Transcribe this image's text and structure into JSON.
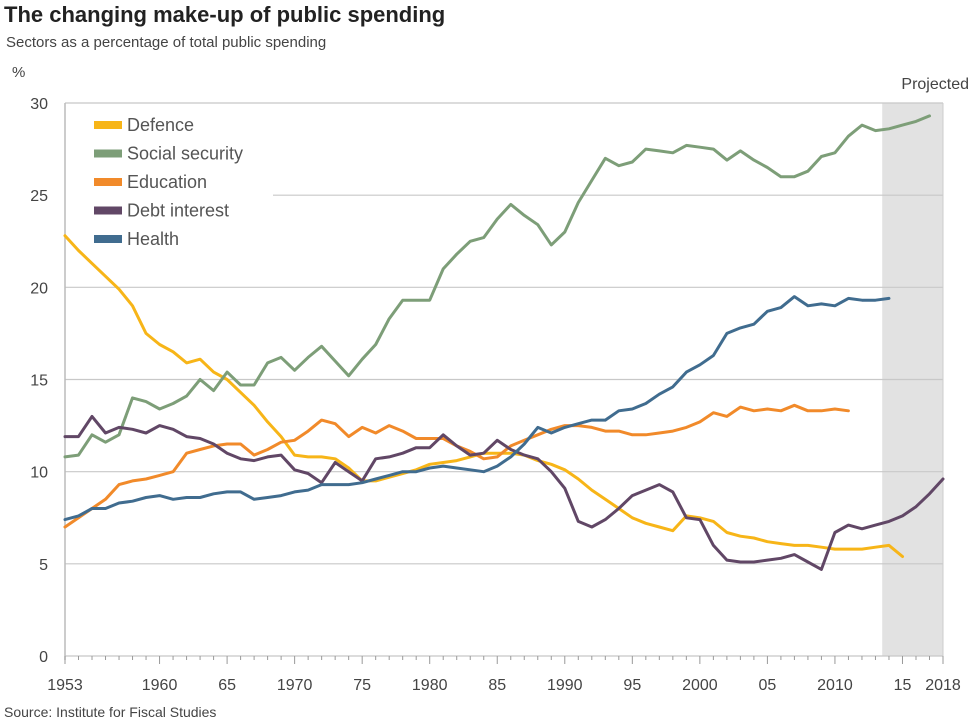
{
  "title": "The changing make-up of public spending",
  "subtitle": "Sectors as a percentage of total public spending",
  "source": "Source: Institute for Fiscal Studies",
  "chart_data": {
    "type": "line",
    "title": "The changing make-up of public spending",
    "ylabel": "%",
    "xlim": [
      1953,
      2018
    ],
    "ylim": [
      0,
      30
    ],
    "yticks": [
      0,
      5,
      10,
      15,
      20,
      25,
      30
    ],
    "xticks": [
      {
        "year": 1953,
        "label": "1953"
      },
      {
        "year": 1960,
        "label": "1960"
      },
      {
        "year": 1965,
        "label": "65"
      },
      {
        "year": 1970,
        "label": "1970"
      },
      {
        "year": 1975,
        "label": "75"
      },
      {
        "year": 1980,
        "label": "1980"
      },
      {
        "year": 1985,
        "label": "85"
      },
      {
        "year": 1990,
        "label": "1990"
      },
      {
        "year": 1995,
        "label": "95"
      },
      {
        "year": 2000,
        "label": "2000"
      },
      {
        "year": 2005,
        "label": "05"
      },
      {
        "year": 2010,
        "label": "2010"
      },
      {
        "year": 2015,
        "label": "15"
      },
      {
        "year": 2018,
        "label": "2018"
      }
    ],
    "grid": true,
    "legend": "top-left",
    "projected": {
      "label": "Projected",
      "from": 2013.5,
      "to": 2018,
      "color": "#e2e2e2"
    },
    "series": [
      {
        "name": "Defence",
        "color": "#f7b518",
        "start": 1953,
        "values": [
          22.8,
          22.0,
          21.3,
          20.6,
          19.9,
          19.0,
          17.5,
          16.9,
          16.5,
          15.9,
          16.1,
          15.4,
          15.0,
          14.3,
          13.6,
          12.7,
          11.9,
          10.9,
          10.8,
          10.8,
          10.7,
          10.2,
          9.5,
          9.5,
          9.7,
          9.9,
          10.1,
          10.4,
          10.5,
          10.6,
          10.8,
          11.0,
          11.0,
          11.0,
          10.9,
          10.6,
          10.4,
          10.1,
          9.6,
          9.0,
          8.5,
          8.0,
          7.5,
          7.2,
          7.0,
          6.8,
          7.6,
          7.5,
          7.3,
          6.7,
          6.5,
          6.4,
          6.2,
          6.1,
          6.0,
          6.0,
          5.9,
          5.8,
          5.8,
          5.8,
          5.9,
          6.0,
          5.4
        ]
      },
      {
        "name": "Social security",
        "color": "#7d9e78",
        "start": 1953,
        "values": [
          10.8,
          10.9,
          12.0,
          11.6,
          12.0,
          14.0,
          13.8,
          13.4,
          13.7,
          14.1,
          15.0,
          14.4,
          15.4,
          14.7,
          14.7,
          15.9,
          16.2,
          15.5,
          16.2,
          16.8,
          16.0,
          15.2,
          16.1,
          16.9,
          18.3,
          19.3,
          19.3,
          19.3,
          21.0,
          21.8,
          22.5,
          22.7,
          23.7,
          24.5,
          23.9,
          23.4,
          22.3,
          23.0,
          24.6,
          25.8,
          27.0,
          26.6,
          26.8,
          27.5,
          27.4,
          27.3,
          27.7,
          27.6,
          27.5,
          26.9,
          27.4,
          26.9,
          26.5,
          26.0,
          26.0,
          26.3,
          27.1,
          27.3,
          28.2,
          28.8,
          28.5,
          28.6,
          28.8,
          29.0,
          29.3
        ]
      },
      {
        "name": "Education",
        "color": "#f18a2a",
        "start": 1953,
        "values": [
          7.0,
          7.5,
          8.0,
          8.5,
          9.3,
          9.5,
          9.6,
          9.8,
          10.0,
          11.0,
          11.2,
          11.4,
          11.5,
          11.5,
          10.9,
          11.2,
          11.6,
          11.7,
          12.2,
          12.8,
          12.6,
          11.9,
          12.4,
          12.1,
          12.5,
          12.2,
          11.8,
          11.8,
          11.8,
          11.4,
          11.1,
          10.7,
          10.8,
          11.4,
          11.7,
          12.0,
          12.3,
          12.5,
          12.5,
          12.4,
          12.2,
          12.2,
          12.0,
          12.0,
          12.1,
          12.2,
          12.4,
          12.7,
          13.2,
          13.0,
          13.5,
          13.3,
          13.4,
          13.3,
          13.6,
          13.3,
          13.3,
          13.4,
          13.3
        ]
      },
      {
        "name": "Debt interest",
        "color": "#614766",
        "start": 1953,
        "values": [
          11.9,
          11.9,
          13.0,
          12.1,
          12.4,
          12.3,
          12.1,
          12.5,
          12.3,
          11.9,
          11.8,
          11.5,
          11.0,
          10.7,
          10.6,
          10.8,
          10.9,
          10.1,
          9.9,
          9.4,
          10.5,
          10.0,
          9.5,
          10.7,
          10.8,
          11.0,
          11.3,
          11.3,
          12.0,
          11.4,
          10.9,
          11.0,
          11.7,
          11.2,
          10.9,
          10.7,
          10.0,
          9.1,
          7.3,
          7.0,
          7.4,
          8.0,
          8.7,
          9.0,
          9.3,
          8.9,
          7.5,
          7.4,
          6.0,
          5.2,
          5.1,
          5.1,
          5.2,
          5.3,
          5.5,
          5.1,
          4.7,
          6.7,
          7.1,
          6.9,
          7.1,
          7.3,
          7.6,
          8.1,
          8.8,
          9.6
        ]
      },
      {
        "name": "Health",
        "color": "#406c8f",
        "start": 1953,
        "values": [
          7.4,
          7.6,
          8.0,
          8.0,
          8.3,
          8.4,
          8.6,
          8.7,
          8.5,
          8.6,
          8.6,
          8.8,
          8.9,
          8.9,
          8.5,
          8.6,
          8.7,
          8.9,
          9.0,
          9.3,
          9.3,
          9.3,
          9.4,
          9.6,
          9.8,
          10.0,
          10.0,
          10.2,
          10.3,
          10.2,
          10.1,
          10.0,
          10.3,
          10.8,
          11.5,
          12.4,
          12.1,
          12.4,
          12.6,
          12.8,
          12.8,
          13.3,
          13.4,
          13.7,
          14.2,
          14.6,
          15.4,
          15.8,
          16.3,
          17.5,
          17.8,
          18.0,
          18.7,
          18.9,
          19.5,
          19.0,
          19.1,
          19.0,
          19.4,
          19.3,
          19.3,
          19.4
        ]
      }
    ]
  }
}
